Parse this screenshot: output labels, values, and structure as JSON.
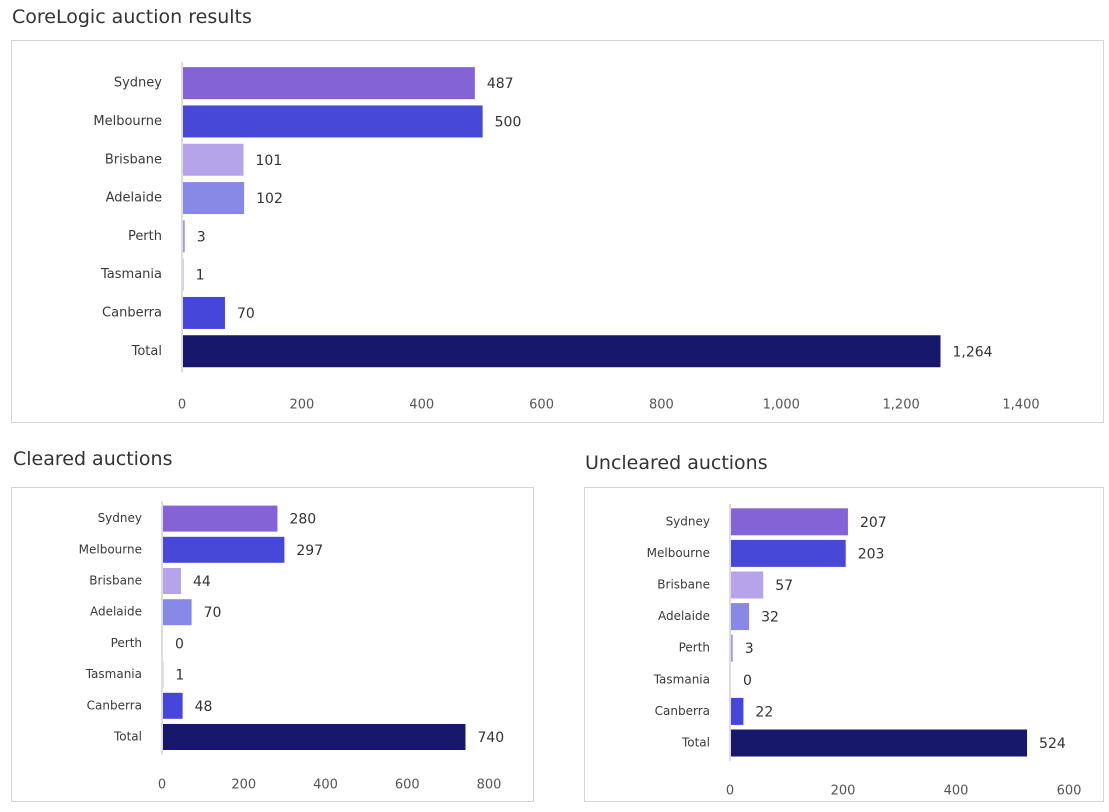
{
  "palette": {
    "Sydney": "#8463d6",
    "Melbourne": "#4747d8",
    "Brisbane": "#b6a4ea",
    "Adelaide": "#8888e6",
    "Perth": "#a29ae0",
    "Tasmania": "#b3aee6",
    "Canberra": "#4646da",
    "Total": "#17176b"
  },
  "chart_data": [
    {
      "type": "bar",
      "orientation": "horizontal",
      "title": "CoreLogic auction results",
      "categories": [
        "Sydney",
        "Melbourne",
        "Brisbane",
        "Adelaide",
        "Perth",
        "Tasmania",
        "Canberra",
        "Total"
      ],
      "values": [
        487,
        500,
        101,
        102,
        3,
        1,
        70,
        1264
      ],
      "data_labels": [
        "487",
        "500",
        "101",
        "102",
        "3",
        "1",
        "70",
        "1,264"
      ],
      "xlim": [
        0,
        1400
      ],
      "xticks": [
        0,
        200,
        400,
        600,
        800,
        1000,
        1200,
        1400
      ],
      "xtick_labels": [
        "0",
        "200",
        "400",
        "600",
        "800",
        "1,000",
        "1,200",
        "1,400"
      ],
      "xlabel": "",
      "ylabel": "",
      "grid": false,
      "legend": "none"
    },
    {
      "type": "bar",
      "orientation": "horizontal",
      "title": "Cleared auctions",
      "categories": [
        "Sydney",
        "Melbourne",
        "Brisbane",
        "Adelaide",
        "Perth",
        "Tasmania",
        "Canberra",
        "Total"
      ],
      "values": [
        280,
        297,
        44,
        70,
        0,
        1,
        48,
        740
      ],
      "data_labels": [
        "280",
        "297",
        "44",
        "70",
        "0",
        "1",
        "48",
        "740"
      ],
      "xlim": [
        0,
        800
      ],
      "xticks": [
        0,
        200,
        400,
        600,
        800
      ],
      "xtick_labels": [
        "0",
        "200",
        "400",
        "600",
        "800"
      ],
      "xlabel": "",
      "ylabel": "",
      "grid": false,
      "legend": "none"
    },
    {
      "type": "bar",
      "orientation": "horizontal",
      "title": "Uncleared auctions",
      "categories": [
        "Sydney",
        "Melbourne",
        "Brisbane",
        "Adelaide",
        "Perth",
        "Tasmania",
        "Canberra",
        "Total"
      ],
      "values": [
        207,
        203,
        57,
        32,
        3,
        0,
        22,
        524
      ],
      "data_labels": [
        "207",
        "203",
        "57",
        "32",
        "3",
        "0",
        "22",
        "524"
      ],
      "xlim": [
        0,
        600
      ],
      "xticks": [
        0,
        200,
        400,
        600
      ],
      "xtick_labels": [
        "0",
        "200",
        "400",
        "600"
      ],
      "xlabel": "",
      "ylabel": "",
      "grid": false,
      "legend": "none"
    }
  ]
}
